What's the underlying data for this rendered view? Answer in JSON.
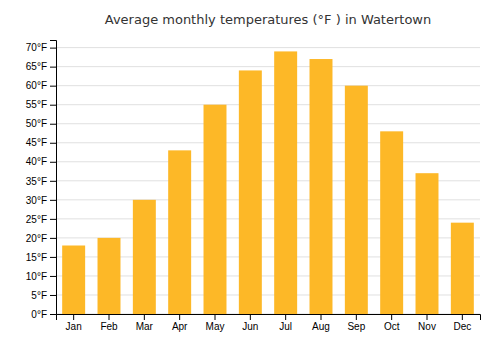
{
  "chart_data": {
    "type": "bar",
    "title": "Average monthly temperatures (°F ) in Watertown",
    "categories": [
      "Jan",
      "Feb",
      "Mar",
      "Apr",
      "May",
      "Jun",
      "Jul",
      "Aug",
      "Sep",
      "Oct",
      "Nov",
      "Dec"
    ],
    "values": [
      18,
      20,
      30,
      43,
      55,
      64,
      69,
      67,
      60,
      48,
      37,
      24
    ],
    "color": "#FDB827",
    "ylim": [
      0,
      72
    ],
    "yticks": [
      {
        "value": 0,
        "label": "0°F"
      },
      {
        "value": 5,
        "label": "5°F"
      },
      {
        "value": 10,
        "label": "10°F"
      },
      {
        "value": 15,
        "label": "15°F"
      },
      {
        "value": 20,
        "label": "20°F"
      },
      {
        "value": 25,
        "label": "25°F"
      },
      {
        "value": 30,
        "label": "30°F"
      },
      {
        "value": 35,
        "label": "35°F"
      },
      {
        "value": 40,
        "label": "40°F"
      },
      {
        "value": 45,
        "label": "45°F"
      },
      {
        "value": 50,
        "label": "50°F"
      },
      {
        "value": 55,
        "label": "55°F"
      },
      {
        "value": 60,
        "label": "60°F"
      },
      {
        "value": 65,
        "label": "65°F"
      },
      {
        "value": 70,
        "label": "70°F"
      }
    ],
    "grid": true
  }
}
